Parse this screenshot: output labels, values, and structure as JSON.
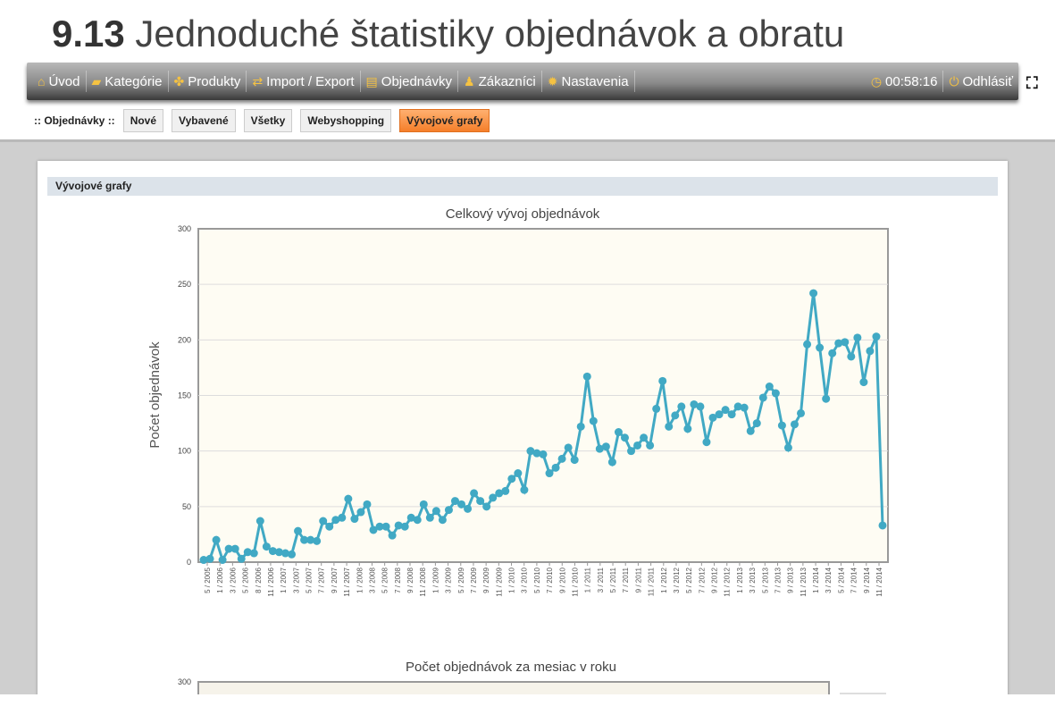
{
  "page_title": {
    "number": "9.13",
    "text": "Jednoduché štatistiky objednávok a obratu"
  },
  "navbar": {
    "items": [
      {
        "label": "Úvod",
        "icon": "home-icon",
        "glyph": "⌂"
      },
      {
        "label": "Kategórie",
        "icon": "folder-icon",
        "glyph": "▰"
      },
      {
        "label": "Produkty",
        "icon": "puzzle-icon",
        "glyph": "✤"
      },
      {
        "label": "Import / Export",
        "icon": "transfer-icon",
        "glyph": "⇄"
      },
      {
        "label": "Objednávky",
        "icon": "document-icon",
        "glyph": "▤"
      },
      {
        "label": "Zákazníci",
        "icon": "user-icon",
        "glyph": "♟"
      },
      {
        "label": "Nastavenia",
        "icon": "gear-icon",
        "glyph": "✹"
      }
    ],
    "timer": {
      "label": "00:58:16",
      "glyph": "◷"
    },
    "logout": {
      "label": "Odhlásiť",
      "glyph": "⏻"
    },
    "fullscreen_glyph": "⛶"
  },
  "subnav": {
    "label": ":: Objednávky ::",
    "buttons": [
      "Nové",
      "Vybavené",
      "Všetky",
      "Webyshopping",
      "Vývojové grafy"
    ],
    "active": 4
  },
  "section_title": "Vývojové grafy",
  "colors": {
    "line": "#41a9c4",
    "plot_bg": "#fefcf3",
    "active": "#f57f2a"
  },
  "chart_data": [
    {
      "type": "line",
      "title": "Celkový vývoj objednávok",
      "ylabel": "Počet objednávok",
      "xlabel": "",
      "ylim": [
        0,
        300
      ],
      "yticks": [
        0,
        50,
        100,
        150,
        200,
        250,
        300
      ],
      "grid": true,
      "xtick_labels": [
        "5 / 2005",
        "1 / 2006",
        "3 / 2006",
        "5 / 2006",
        "8 / 2006",
        "11 / 2006",
        "1 / 2007",
        "3 / 2007",
        "5 / 2007",
        "7 / 2007",
        "9 / 2007",
        "11 / 2007",
        "1 / 2008",
        "3 / 2008",
        "5 / 2008",
        "7 / 2008",
        "9 / 2008",
        "11 / 2008",
        "1 / 2009",
        "3 / 2009",
        "5 / 2009",
        "7 / 2009",
        "9 / 2009",
        "11 / 2009",
        "1 / 2010",
        "3 / 2010",
        "5 / 2010",
        "7 / 2010",
        "9 / 2010",
        "11 / 2010",
        "1 / 2011",
        "3 / 2011",
        "5 / 2011",
        "7 / 2011",
        "9 / 2011",
        "11 / 2011",
        "1 / 2012",
        "3 / 2012",
        "5 / 2012",
        "7 / 2012",
        "9 / 2012",
        "11 / 2012",
        "1 / 2013",
        "3 / 2013",
        "5 / 2013",
        "7 / 2013",
        "9 / 2013",
        "11 / 2013",
        "1 / 2014",
        "3 / 2014",
        "5 / 2014",
        "7 / 2014",
        "9 / 2014",
        "11 / 2014"
      ],
      "values": [
        2,
        3,
        20,
        2,
        12,
        12,
        3,
        9,
        8,
        37,
        14,
        10,
        9,
        8,
        7,
        28,
        20,
        20,
        19,
        37,
        32,
        38,
        40,
        57,
        39,
        45,
        52,
        29,
        32,
        32,
        24,
        33,
        32,
        40,
        38,
        52,
        40,
        46,
        38,
        47,
        55,
        52,
        48,
        62,
        55,
        50,
        58,
        62,
        64,
        75,
        80,
        65,
        100,
        98,
        97,
        80,
        85,
        93,
        103,
        92,
        122,
        167,
        127,
        102,
        104,
        90,
        117,
        112,
        100,
        105,
        112,
        105,
        138,
        163,
        122,
        132,
        140,
        120,
        142,
        140,
        108,
        130,
        133,
        137,
        133,
        140,
        139,
        118,
        125,
        148,
        158,
        152,
        123,
        103,
        124,
        134,
        196,
        242,
        193,
        147,
        188,
        197,
        198,
        185,
        202,
        162,
        190,
        203,
        33
      ]
    },
    {
      "type": "line",
      "title": "Počet objednávok za mesiac v roku",
      "yticks": [
        300
      ]
    }
  ]
}
